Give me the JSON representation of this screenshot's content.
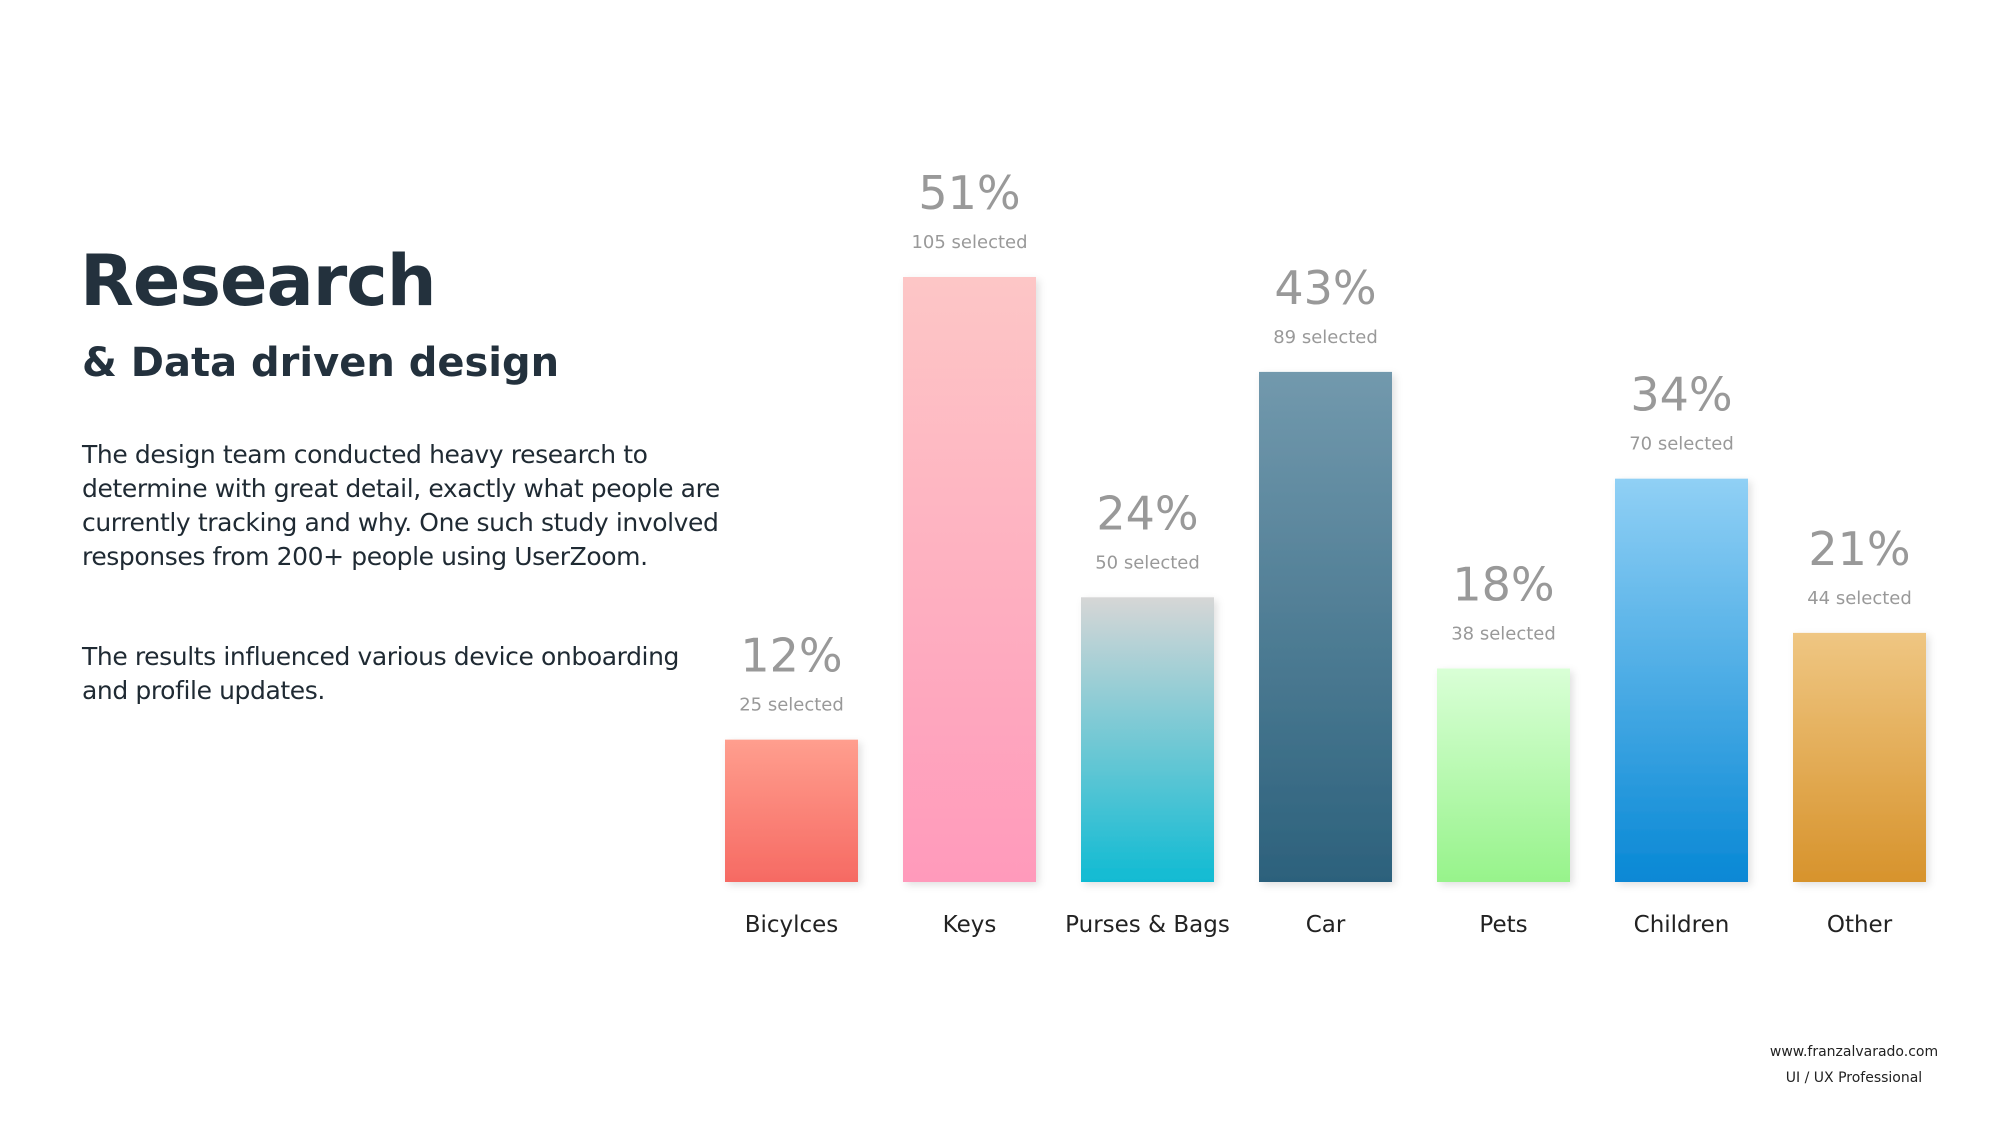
{
  "header": {
    "title": "Research",
    "subtitle": "& Data driven design"
  },
  "paragraphs": [
    [
      "The design team conducted heavy research to",
      "determine with great detail, exactly what people are",
      "currently tracking and why. One such study involved",
      "responses from 200+ people using UserZoom."
    ],
    [
      "The results influenced various device onboarding",
      "and profile updates."
    ]
  ],
  "chart_data": {
    "type": "bar",
    "categories": [
      "Bicylces",
      "Keys",
      "Purses & Bags",
      "Car",
      "Pets",
      "Children",
      "Other"
    ],
    "values": [
      12,
      51,
      24,
      43,
      18,
      34,
      21
    ],
    "value_labels": [
      "12%",
      "51%",
      "24%",
      "43%",
      "18%",
      "34%",
      "21%"
    ],
    "count_labels": [
      "25 selected",
      "105 selected",
      "50 selected",
      "89 selected",
      "38 selected",
      "70 selected",
      "44 selected"
    ],
    "colors": [
      [
        "#ff9e8e",
        "#f66a63"
      ],
      [
        "#fdc6c6",
        "#ff9abb"
      ],
      [
        "#d6d6d6",
        "#10bbd3"
      ],
      [
        "#7299ad",
        "#2c617c"
      ],
      [
        "#d9ffd6",
        "#97f38b"
      ],
      [
        "#90d0f5",
        "#0888d5"
      ],
      [
        "#efc682",
        "#d7932c"
      ]
    ]
  },
  "footer": {
    "site": "www.franzalvarado.com",
    "role": "UI / UX Professional"
  }
}
